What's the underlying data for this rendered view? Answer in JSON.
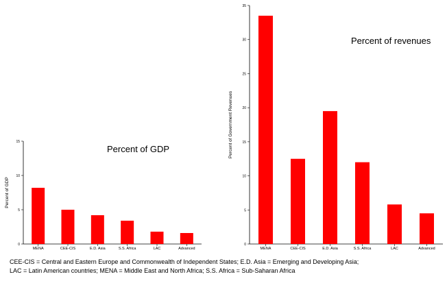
{
  "chart_data": [
    {
      "type": "bar",
      "title": "Percent of GDP",
      "ylabel": "Percent of GDP",
      "xlabel": "",
      "categories": [
        "MENA",
        "CEE-CIS",
        "E.D. Asia",
        "S.S. Africa",
        "LAC",
        "Advanced"
      ],
      "values": [
        8.2,
        5.0,
        4.2,
        3.4,
        1.8,
        1.6
      ],
      "ylim": [
        0,
        15
      ],
      "yticks": [
        "0",
        "5",
        "10",
        "15"
      ],
      "bar_color": "#ff0000",
      "grid": false
    },
    {
      "type": "bar",
      "title": "Percent of revenues",
      "ylabel": "Percent of Government Revenues",
      "xlabel": "",
      "categories": [
        "MENA",
        "CEE-CIS",
        "E.D. Asia",
        "S.S. Africa",
        "LAC",
        "Advanced"
      ],
      "values": [
        33.5,
        12.5,
        19.5,
        12.0,
        5.8,
        4.5
      ],
      "ylim": [
        0,
        35
      ],
      "yticks": [
        "0",
        "5",
        "10",
        "15",
        "20",
        "25",
        "30",
        "35"
      ],
      "bar_color": "#ff0000",
      "grid": false
    }
  ],
  "footnote": {
    "line1": "CEE-CIS = Central and Eastern Europe and Commonwealth of Independent States; E.D. Asia = Emerging and Developing Asia;",
    "line2": "LAC = Latin American countries; MENA = Middle East and North Africa; S.S. Africa = Sub-Saharan Africa"
  }
}
